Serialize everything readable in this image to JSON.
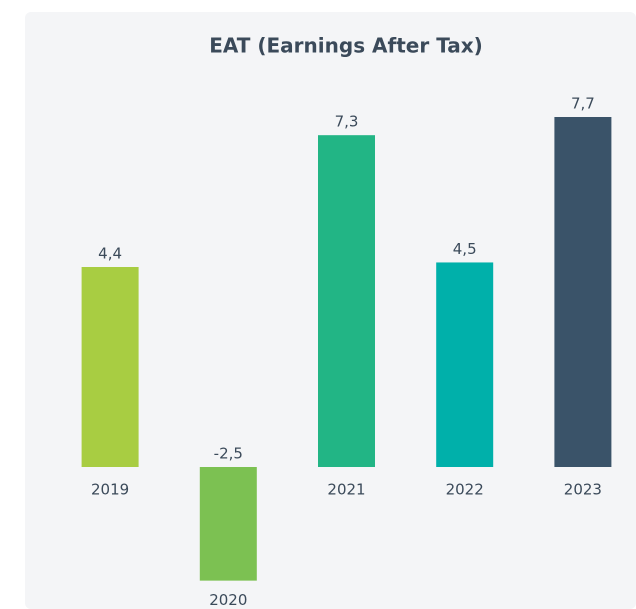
{
  "chart_data": {
    "type": "bar",
    "title": "EAT (Earnings After Tax)",
    "categories": [
      "2019",
      "2020",
      "2021",
      "2022",
      "2023"
    ],
    "values": [
      4.4,
      -2.5,
      7.3,
      4.5,
      7.7
    ],
    "value_labels": [
      "4,4",
      "-2,5",
      "7,3",
      "4,5",
      "7,7"
    ],
    "colors": [
      "#a8cd42",
      "#7cc152",
      "#22b585",
      "#00b0aa",
      "#3a5369"
    ]
  }
}
